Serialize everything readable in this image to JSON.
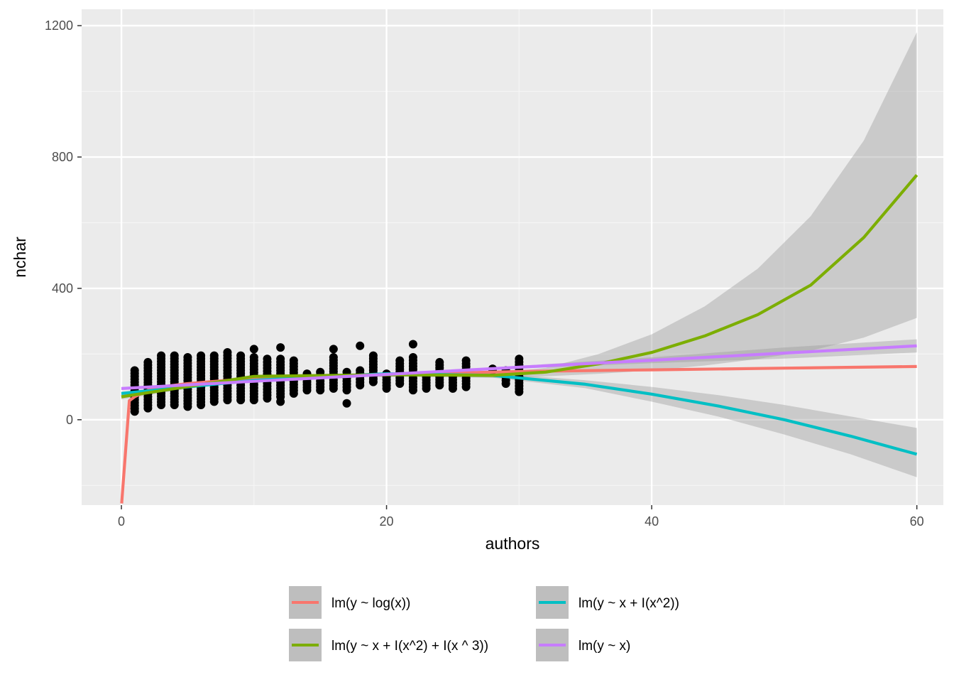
{
  "chart_data": {
    "type": "scatter",
    "xlabel": "authors",
    "ylabel": "nchar",
    "xlim": [
      -3,
      62
    ],
    "ylim": [
      -260,
      1250
    ],
    "x_ticks": [
      0,
      20,
      40,
      60
    ],
    "y_ticks": [
      0,
      400,
      800,
      1200
    ],
    "x_tick_labels": [
      "0",
      "20",
      "40",
      "60"
    ],
    "y_tick_labels": [
      "0",
      "400",
      "800",
      "1200"
    ],
    "grid": true,
    "legend_position": "bottom",
    "points": {
      "color": "#000000",
      "columns": [
        {
          "x": 1,
          "min": 25,
          "max": 150,
          "outliers": []
        },
        {
          "x": 2,
          "min": 35,
          "max": 175,
          "outliers": []
        },
        {
          "x": 3,
          "min": 45,
          "max": 195,
          "outliers": []
        },
        {
          "x": 4,
          "min": 45,
          "max": 195,
          "outliers": []
        },
        {
          "x": 5,
          "min": 40,
          "max": 190,
          "outliers": []
        },
        {
          "x": 6,
          "min": 45,
          "max": 195,
          "outliers": []
        },
        {
          "x": 7,
          "min": 55,
          "max": 195,
          "outliers": []
        },
        {
          "x": 8,
          "min": 60,
          "max": 205,
          "outliers": []
        },
        {
          "x": 9,
          "min": 60,
          "max": 195,
          "outliers": []
        },
        {
          "x": 10,
          "min": 60,
          "max": 190,
          "outliers": [
            215
          ]
        },
        {
          "x": 11,
          "min": 65,
          "max": 185,
          "outliers": []
        },
        {
          "x": 12,
          "min": 70,
          "max": 185,
          "outliers": [
            55,
            220
          ]
        },
        {
          "x": 13,
          "min": 80,
          "max": 180,
          "outliers": []
        },
        {
          "x": 14,
          "min": 90,
          "max": 140,
          "outliers": []
        },
        {
          "x": 15,
          "min": 90,
          "max": 145,
          "outliers": []
        },
        {
          "x": 16,
          "min": 95,
          "max": 190,
          "outliers": [
            215
          ]
        },
        {
          "x": 17,
          "min": 90,
          "max": 145,
          "outliers": [
            50
          ]
        },
        {
          "x": 18,
          "min": 105,
          "max": 150,
          "outliers": [
            225
          ]
        },
        {
          "x": 19,
          "min": 115,
          "max": 195,
          "outliers": []
        },
        {
          "x": 20,
          "min": 95,
          "max": 140,
          "outliers": []
        },
        {
          "x": 21,
          "min": 110,
          "max": 180,
          "outliers": []
        },
        {
          "x": 22,
          "min": 90,
          "max": 190,
          "outliers": [
            230
          ]
        },
        {
          "x": 23,
          "min": 95,
          "max": 130,
          "outliers": []
        },
        {
          "x": 24,
          "min": 105,
          "max": 175,
          "outliers": []
        },
        {
          "x": 25,
          "min": 95,
          "max": 140,
          "outliers": []
        },
        {
          "x": 26,
          "min": 100,
          "max": 180,
          "outliers": []
        },
        {
          "x": 28,
          "min": 150,
          "max": 155,
          "outliers": []
        },
        {
          "x": 29,
          "min": 110,
          "max": 150,
          "outliers": []
        },
        {
          "x": 30,
          "min": 85,
          "max": 185,
          "outliers": []
        }
      ]
    },
    "series": [
      {
        "name": "lm(y ~ log(x))",
        "color": "#F8766D",
        "x": [
          0.02,
          0.6,
          1,
          2,
          3,
          5,
          8,
          10,
          15,
          20,
          30,
          40,
          50,
          60
        ],
        "y": [
          -255,
          58,
          70,
          90,
          100,
          110,
          120,
          125,
          132,
          137,
          147,
          152,
          157,
          162
        ],
        "band_low": [
          -255,
          58,
          70,
          90,
          100,
          110,
          120,
          125,
          132,
          137,
          147,
          152,
          157,
          162
        ],
        "band_high": [
          -255,
          58,
          70,
          90,
          100,
          110,
          120,
          125,
          132,
          137,
          147,
          152,
          157,
          162
        ]
      },
      {
        "name": "lm(y ~ x + I(x^2))",
        "color": "#00BFC4",
        "x": [
          0,
          10,
          20,
          28,
          35,
          40,
          45,
          50,
          55,
          60
        ],
        "y": [
          80,
          120,
          140,
          135,
          108,
          78,
          42,
          0,
          -50,
          -105
        ],
        "band_low": [
          75,
          116,
          136,
          128,
          96,
          55,
          10,
          -45,
          -105,
          -175
        ],
        "band_high": [
          85,
          124,
          144,
          142,
          120,
          100,
          75,
          45,
          10,
          -25
        ]
      },
      {
        "name": "lm(y ~ x + I(x^2) + I(x ^ 3))",
        "color": "#7CAE00",
        "x": [
          0,
          10,
          20,
          28,
          32,
          36,
          40,
          44,
          48,
          52,
          56,
          60
        ],
        "y": [
          70,
          132,
          137,
          135,
          145,
          170,
          205,
          255,
          320,
          410,
          555,
          745
        ],
        "band_low": [
          62,
          127,
          131,
          128,
          132,
          140,
          150,
          165,
          185,
          210,
          250,
          310
        ],
        "band_high": [
          78,
          137,
          143,
          142,
          158,
          200,
          260,
          345,
          460,
          620,
          850,
          1180
        ]
      },
      {
        "name": "lm(y ~ x)",
        "color": "#C77CFF",
        "x": [
          0,
          10,
          20,
          30,
          40,
          50,
          60
        ],
        "y": [
          95,
          117,
          138,
          160,
          181,
          203,
          225
        ],
        "band_low": [
          92,
          115,
          136,
          156,
          172,
          186,
          205
        ],
        "band_high": [
          98,
          119,
          140,
          164,
          190,
          220,
          245
        ]
      }
    ],
    "legend": [
      {
        "label": "lm(y ~ log(x))",
        "color": "#F8766D"
      },
      {
        "label": "lm(y ~ x + I(x^2))",
        "color": "#00BFC4"
      },
      {
        "label": "lm(y ~ x + I(x^2) + I(x ^ 3))",
        "color": "#7CAE00"
      },
      {
        "label": "lm(y ~ x)",
        "color": "#C77CFF"
      }
    ]
  }
}
